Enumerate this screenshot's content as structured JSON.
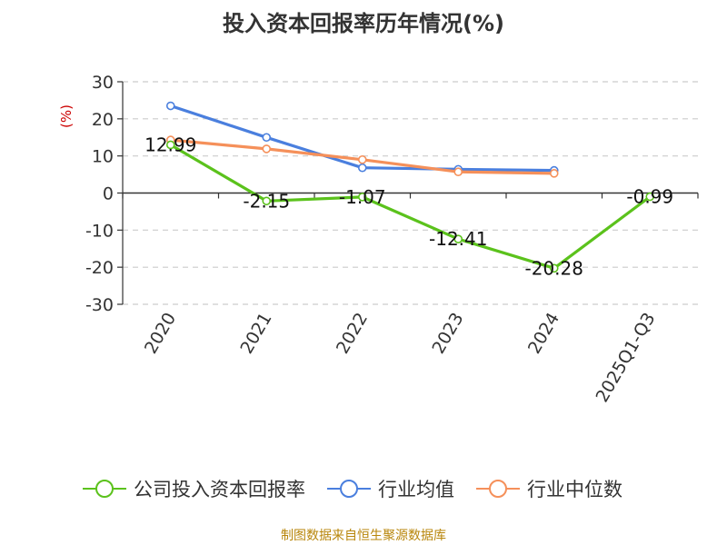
{
  "chart_data": {
    "type": "line",
    "title": "投入资本回报率历年情况(%)",
    "ylabel": "(%)",
    "xlabel": "",
    "categories": [
      "2020",
      "2021",
      "2022",
      "2023",
      "2024",
      "2025Q1-Q3"
    ],
    "y_ticks": [
      "30",
      "20",
      "10",
      "0",
      "-10",
      "-20",
      "-30"
    ],
    "ylim": [
      -30,
      30
    ],
    "grid": true,
    "legend_position": "bottom",
    "series": [
      {
        "name": "公司投入资本回报率",
        "color": "#5bc21c",
        "values": [
          12.99,
          -2.15,
          -1.07,
          -12.41,
          -20.28,
          -0.99
        ],
        "labels": [
          "12.99",
          "-2.15",
          "-1.07",
          "-12.41",
          "-20.28",
          "-0.99"
        ]
      },
      {
        "name": "行业均值",
        "color": "#4a7fde",
        "values": [
          23.5,
          15.0,
          6.8,
          6.4,
          6.1,
          null
        ]
      },
      {
        "name": "行业中位数",
        "color": "#f5905a",
        "values": [
          14.3,
          11.9,
          9.0,
          5.7,
          5.3,
          null
        ]
      }
    ]
  },
  "source": "制图数据来自恒生聚源数据库"
}
